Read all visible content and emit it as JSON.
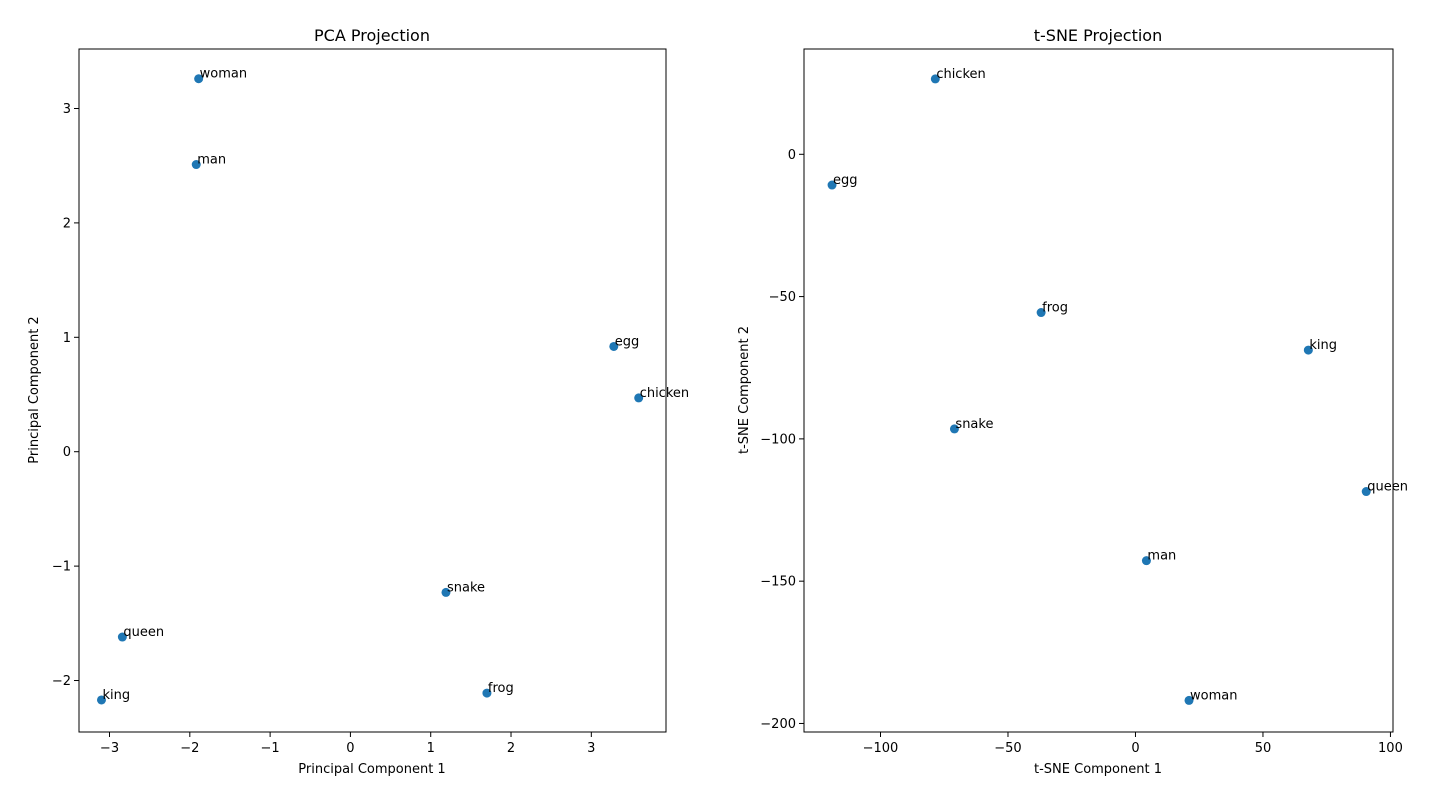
{
  "colors": {
    "marker": "#1f77b4",
    "axis": "#000000",
    "background": "#ffffff"
  },
  "chart_data": [
    {
      "type": "scatter",
      "title": "PCA Projection",
      "xlabel": "Principal Component 1",
      "ylabel": "Principal Component 2",
      "xlim": [
        -3.38,
        3.93
      ],
      "ylim": [
        -2.45,
        3.52
      ],
      "xticks": [
        -3,
        -2,
        -1,
        0,
        1,
        2,
        3
      ],
      "yticks": [
        -2,
        -1,
        0,
        1,
        2,
        3
      ],
      "grid": false,
      "points": [
        {
          "label": "woman",
          "x": -1.89,
          "y": 3.26
        },
        {
          "label": "man",
          "x": -1.92,
          "y": 2.51
        },
        {
          "label": "egg",
          "x": 3.28,
          "y": 0.92
        },
        {
          "label": "chicken",
          "x": 3.59,
          "y": 0.47
        },
        {
          "label": "snake",
          "x": 1.19,
          "y": -1.23
        },
        {
          "label": "queen",
          "x": -2.84,
          "y": -1.62
        },
        {
          "label": "frog",
          "x": 1.7,
          "y": -2.11
        },
        {
          "label": "king",
          "x": -3.1,
          "y": -2.17
        }
      ]
    },
    {
      "type": "scatter",
      "title": "t-SNE Projection",
      "xlabel": "t-SNE Component 1",
      "ylabel": "t-SNE Component 2",
      "xlim": [
        -130,
        101
      ],
      "ylim": [
        -203,
        37
      ],
      "xticks": [
        -100,
        -50,
        0,
        50,
        100
      ],
      "yticks": [
        0,
        -50,
        -100,
        -150,
        -200
      ],
      "grid": false,
      "points": [
        {
          "label": "chicken",
          "x": -78.5,
          "y": 26.5
        },
        {
          "label": "egg",
          "x": -119.0,
          "y": -10.8
        },
        {
          "label": "frog",
          "x": -37.0,
          "y": -55.6
        },
        {
          "label": "king",
          "x": 67.8,
          "y": -68.8
        },
        {
          "label": "snake",
          "x": -71.0,
          "y": -96.5
        },
        {
          "label": "queen",
          "x": 90.5,
          "y": -118.5
        },
        {
          "label": "man",
          "x": 4.3,
          "y": -142.8
        },
        {
          "label": "woman",
          "x": 21.0,
          "y": -191.9
        }
      ]
    }
  ]
}
